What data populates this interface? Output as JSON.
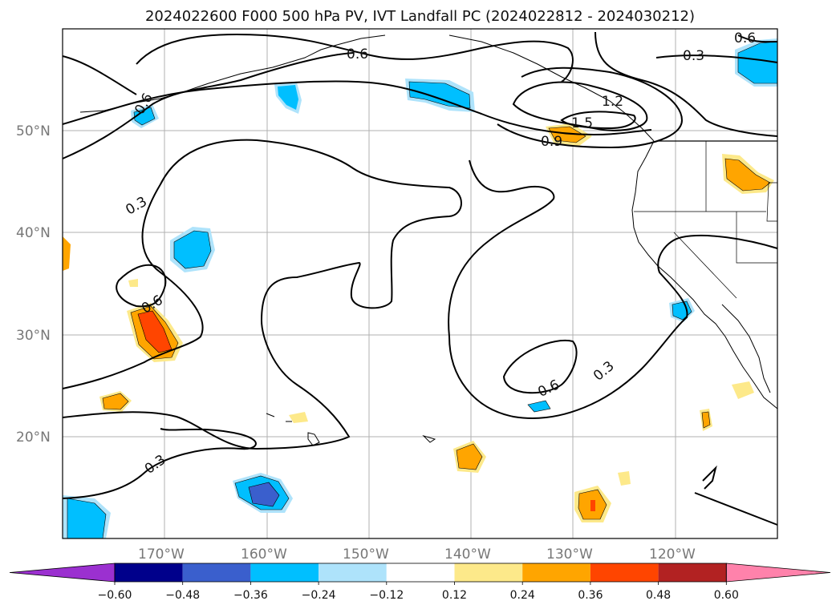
{
  "title": "2024022600 F000 500 hPa PV, IVT Landfall PC (2024022812 - 2024030212)",
  "lat_labels": [
    "50°N",
    "40°N",
    "30°N",
    "20°N"
  ],
  "lon_labels": [
    "170°W",
    "160°W",
    "150°W",
    "140°W",
    "130°W",
    "120°W"
  ],
  "contour_labels": [
    "0.6",
    "0.6",
    "0.6",
    "0.3",
    "1.2",
    "1.5",
    "0.9",
    "0.3",
    "0.6",
    "0.6",
    "0.3",
    "0.3"
  ],
  "colorbar": {
    "ticks": [
      "−0.60",
      "−0.48",
      "−0.36",
      "−0.24",
      "−0.12",
      "0.12",
      "0.24",
      "0.36",
      "0.48",
      "0.60"
    ],
    "colors": [
      "#9b30d0",
      "#00008b",
      "#3a5fcd",
      "#00bfff",
      "#aee3fb",
      "#ffffff",
      "#fde98a",
      "#ffa500",
      "#ff4500",
      "#b22222",
      "#ff82ab"
    ]
  },
  "colors": {
    "grid": "#b0b0b0",
    "contour": "#000000",
    "cyan": "#00bfff",
    "lightblue": "#aee3fb",
    "blue": "#3a5fcd",
    "yellow": "#fde98a",
    "orange": "#ffa500",
    "red": "#ff4500"
  }
}
